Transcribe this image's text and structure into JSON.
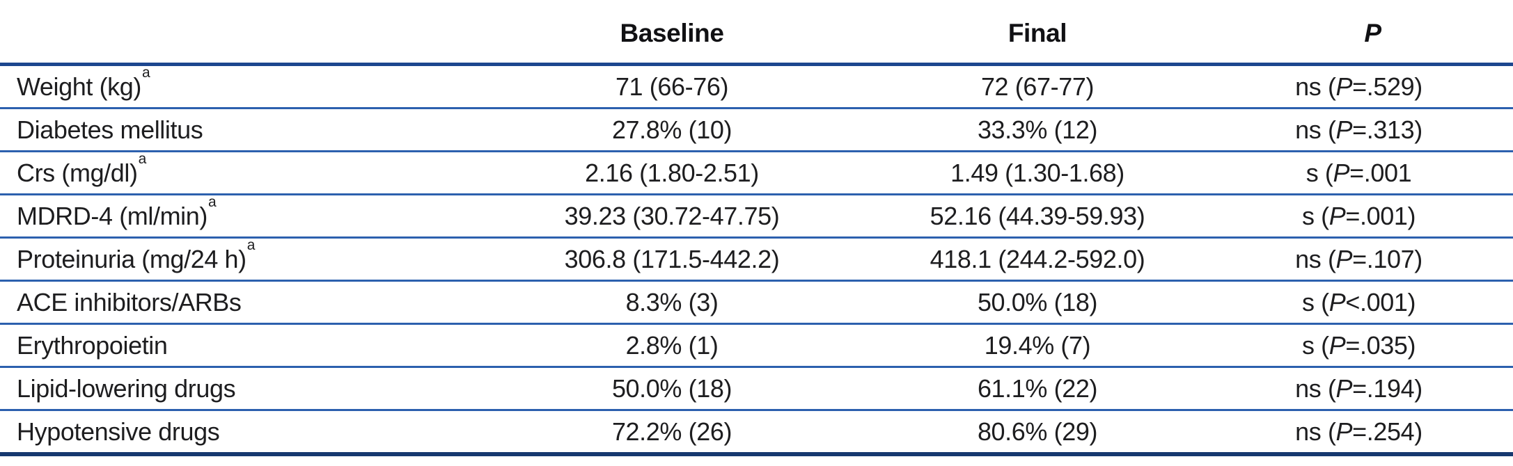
{
  "colors": {
    "rule_mid_blue": "#2c60ae",
    "rule_header_blue": "#1c468f",
    "rule_bottom_navy": "#17386f",
    "text": "#1d1d1f",
    "background": "#ffffff"
  },
  "table": {
    "header": {
      "label": "",
      "baseline": "Baseline",
      "final": "Final",
      "p": "P"
    },
    "rows": [
      {
        "label": "Weight (kg)",
        "sup": "a",
        "baseline": "71 (66-76)",
        "final": "72 (67-77)",
        "p_before": "ns (",
        "p_var": "P",
        "p_after": "=.529)"
      },
      {
        "label": "Diabetes mellitus",
        "sup": "",
        "baseline": "27.8% (10)",
        "final": "33.3% (12)",
        "p_before": "ns (",
        "p_var": "P",
        "p_after": "=.313)"
      },
      {
        "label": "Crs (mg/dl)",
        "sup": "a",
        "baseline": "2.16 (1.80-2.51)",
        "final": "1.49 (1.30-1.68)",
        "p_before": "s (",
        "p_var": "P",
        "p_after": "=.001"
      },
      {
        "label": "MDRD-4 (ml/min)",
        "sup": "a",
        "baseline": "39.23 (30.72-47.75)",
        "final": "52.16 (44.39-59.93)",
        "p_before": "s (",
        "p_var": "P",
        "p_after": "=.001)"
      },
      {
        "label": "Proteinuria (mg/24 h)",
        "sup": "a",
        "baseline": "306.8 (171.5-442.2)",
        "final": "418.1 (244.2-592.0)",
        "p_before": "ns (",
        "p_var": "P",
        "p_after": "=.107)"
      },
      {
        "label": "ACE inhibitors/ARBs",
        "sup": "",
        "baseline": "8.3% (3)",
        "final": "50.0% (18)",
        "p_before": "s (",
        "p_var": "P",
        "p_after": "<.001)"
      },
      {
        "label": "Erythropoietin",
        "sup": "",
        "baseline": "2.8% (1)",
        "final": "19.4% (7)",
        "p_before": "s (",
        "p_var": "P",
        "p_after": "=.035)"
      },
      {
        "label": "Lipid-lowering drugs",
        "sup": "",
        "baseline": "50.0% (18)",
        "final": "61.1% (22)",
        "p_before": "ns (",
        "p_var": "P",
        "p_after": "=.194)"
      },
      {
        "label": "Hypotensive drugs",
        "sup": "",
        "baseline": "72.2% (26)",
        "final": "80.6% (29)",
        "p_before": "ns (",
        "p_var": "P",
        "p_after": "=.254)"
      }
    ]
  }
}
